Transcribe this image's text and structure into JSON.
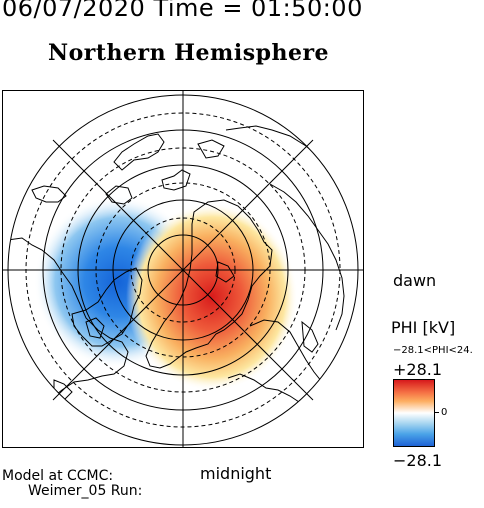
{
  "header": {
    "date_time": "06/07/2020 Time = 01:50:00",
    "hemisphere_title": "Northern Hemisphere"
  },
  "map": {
    "orientation_labels": {
      "dawn": "dawn",
      "midnight": "midnight"
    },
    "potential_cells": [
      {
        "sign": "negative",
        "side": "dusk",
        "color": "#1e63d6"
      },
      {
        "sign": "positive",
        "side": "dawn",
        "color": "#d7191c"
      }
    ]
  },
  "colorbar": {
    "parameter_label": "PHI [kV]",
    "range_text": "−28.1<PHI<24.",
    "max_label": "+28.1",
    "zero_label": "0",
    "min_label": "−28.1",
    "max_value": 28.1,
    "min_value": -28.1,
    "colors": [
      "#d7191c",
      "#fdae61",
      "#ffffff",
      "#4aa3e8",
      "#1e63d6"
    ]
  },
  "footer": {
    "model_line": "Model at CCMC:",
    "run_line": "Weimer_05 Run:"
  }
}
